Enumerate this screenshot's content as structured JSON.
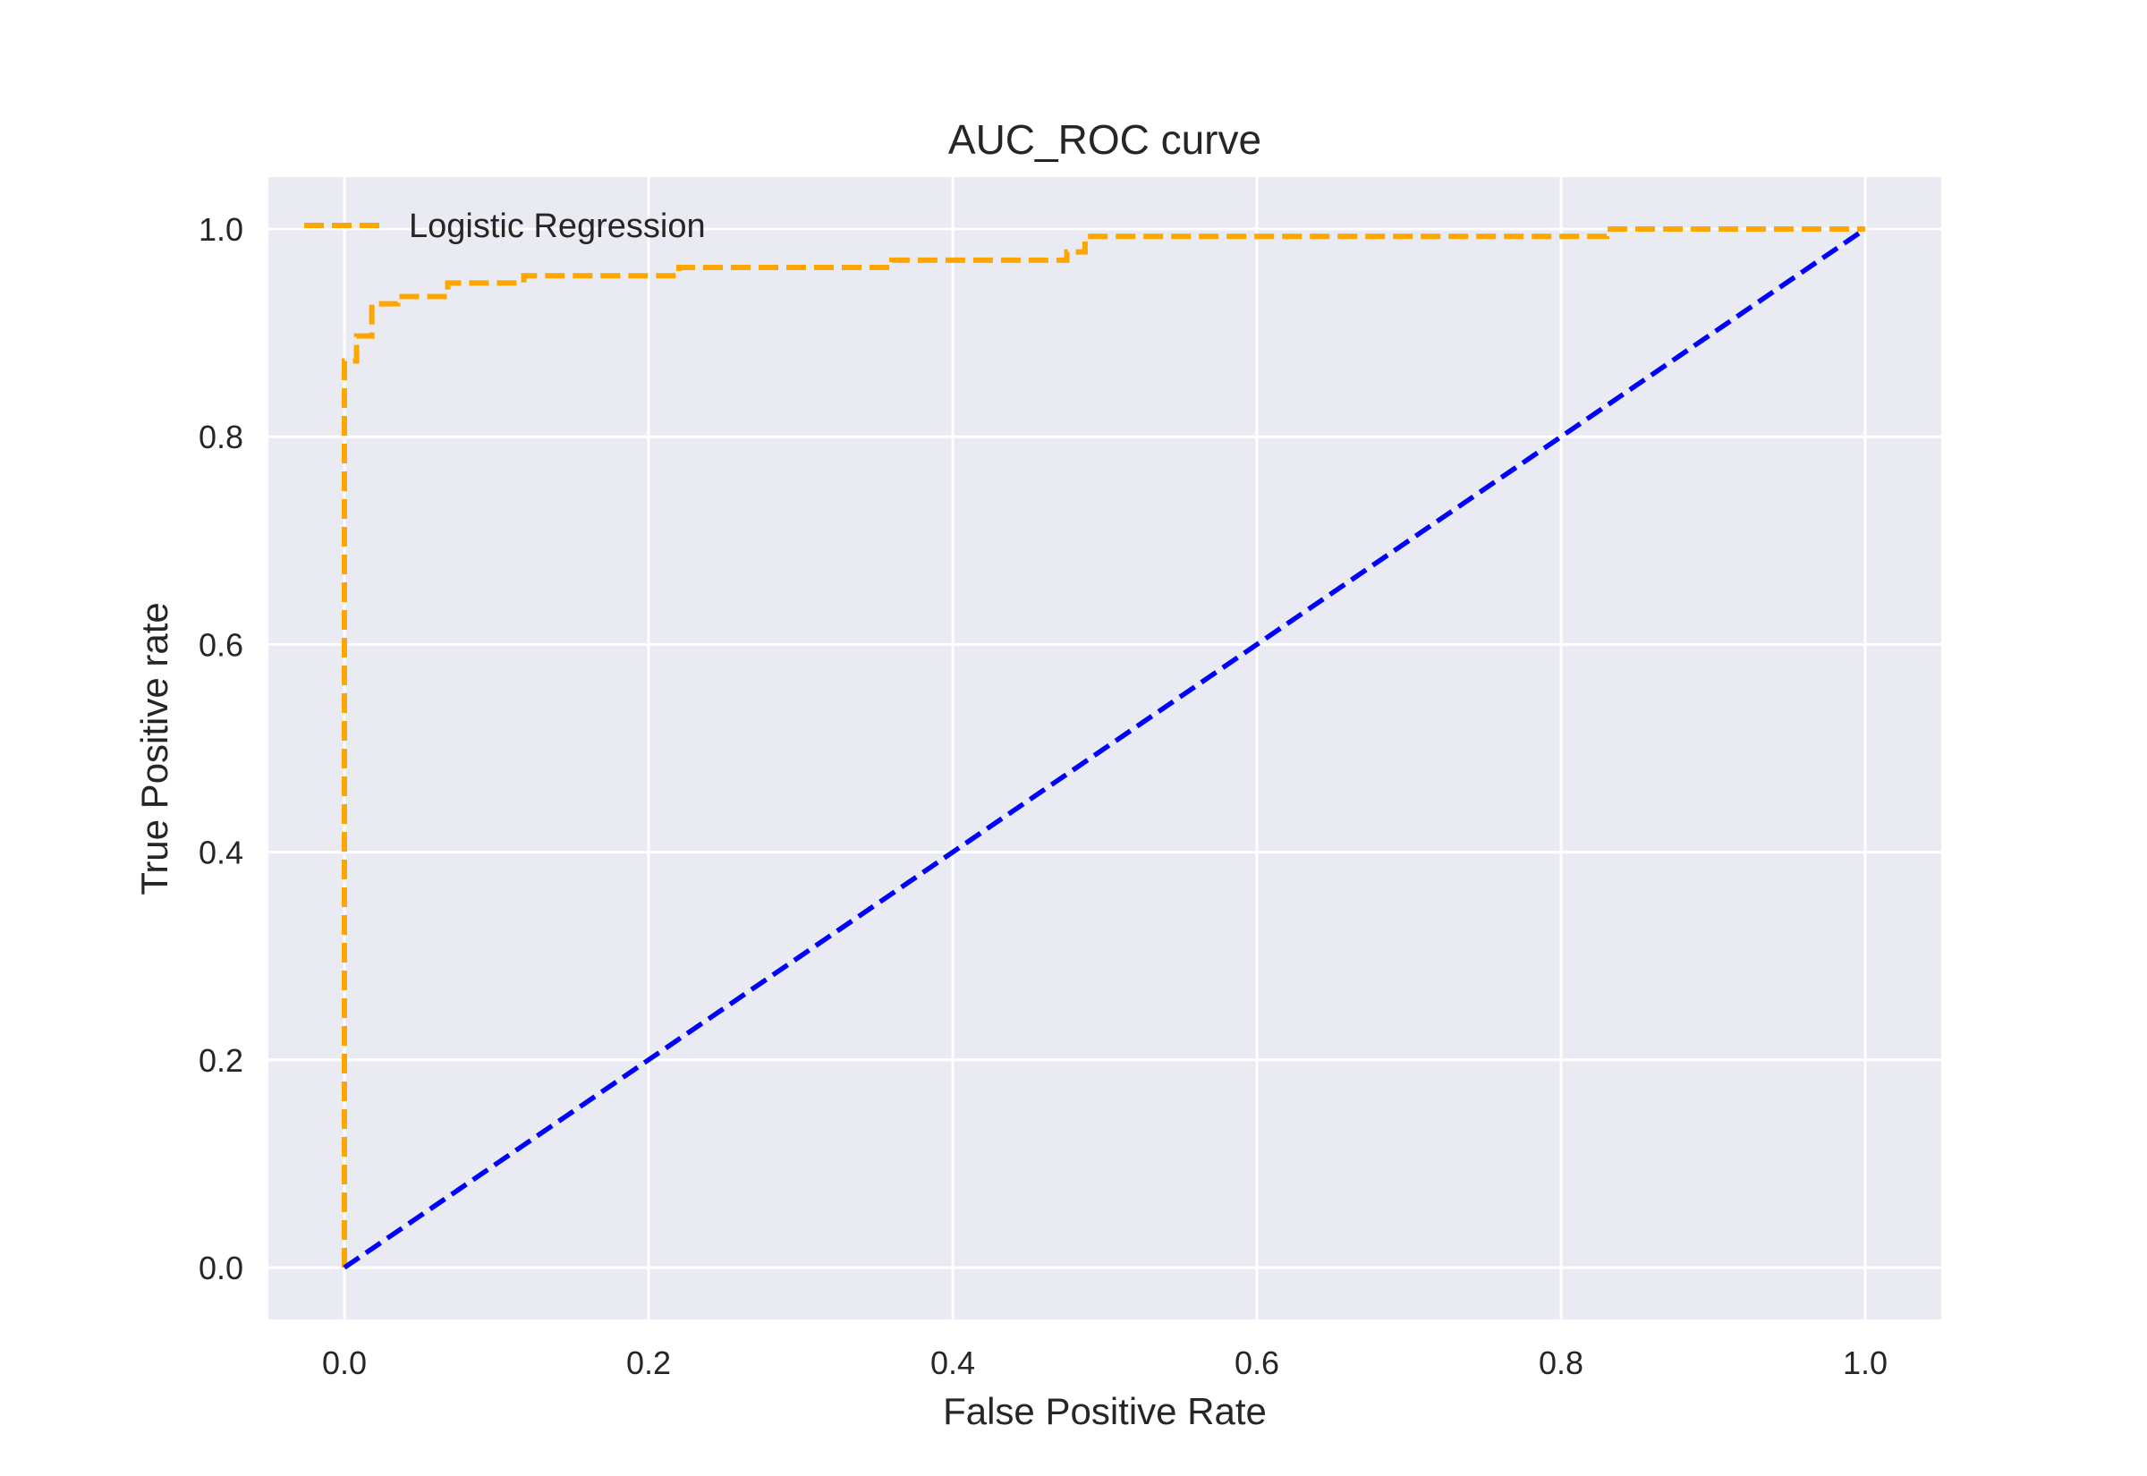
{
  "chart_data": {
    "type": "line",
    "title": "AUC_ROC curve",
    "xlabel": "False Positive Rate",
    "ylabel": "True Positive rate",
    "xlim": [
      -0.05,
      1.05
    ],
    "ylim": [
      -0.05,
      1.05
    ],
    "xticks": [
      0.0,
      0.2,
      0.4,
      0.6,
      0.8,
      1.0
    ],
    "xtick_labels": [
      "0.0",
      "0.2",
      "0.4",
      "0.6",
      "0.8",
      "1.0"
    ],
    "yticks": [
      0.0,
      0.2,
      0.4,
      0.6,
      0.8,
      1.0
    ],
    "ytick_labels": [
      "0.0",
      "0.2",
      "0.4",
      "0.6",
      "0.8",
      "1.0"
    ],
    "grid": true,
    "legend_position": "top-left",
    "background_color": "#eaeaf2",
    "series": [
      {
        "name": "Logistic Regression",
        "color": "#ffa500",
        "style": "dashed",
        "x": [
          0.0,
          0.0,
          0.0,
          0.008,
          0.008,
          0.018,
          0.018,
          0.035,
          0.035,
          0.068,
          0.068,
          0.118,
          0.118,
          0.22,
          0.22,
          0.36,
          0.36,
          0.475,
          0.475,
          0.487,
          0.487,
          0.83,
          0.83,
          1.0
        ],
        "y": [
          0.0,
          0.82,
          0.873,
          0.873,
          0.897,
          0.897,
          0.928,
          0.928,
          0.935,
          0.935,
          0.948,
          0.948,
          0.955,
          0.955,
          0.963,
          0.963,
          0.97,
          0.97,
          0.978,
          0.978,
          0.993,
          0.993,
          1.0,
          1.0
        ]
      },
      {
        "color": "#0000ff",
        "style": "dashed",
        "x": [
          0.0,
          1.0
        ],
        "y": [
          0.0,
          1.0
        ]
      }
    ]
  }
}
